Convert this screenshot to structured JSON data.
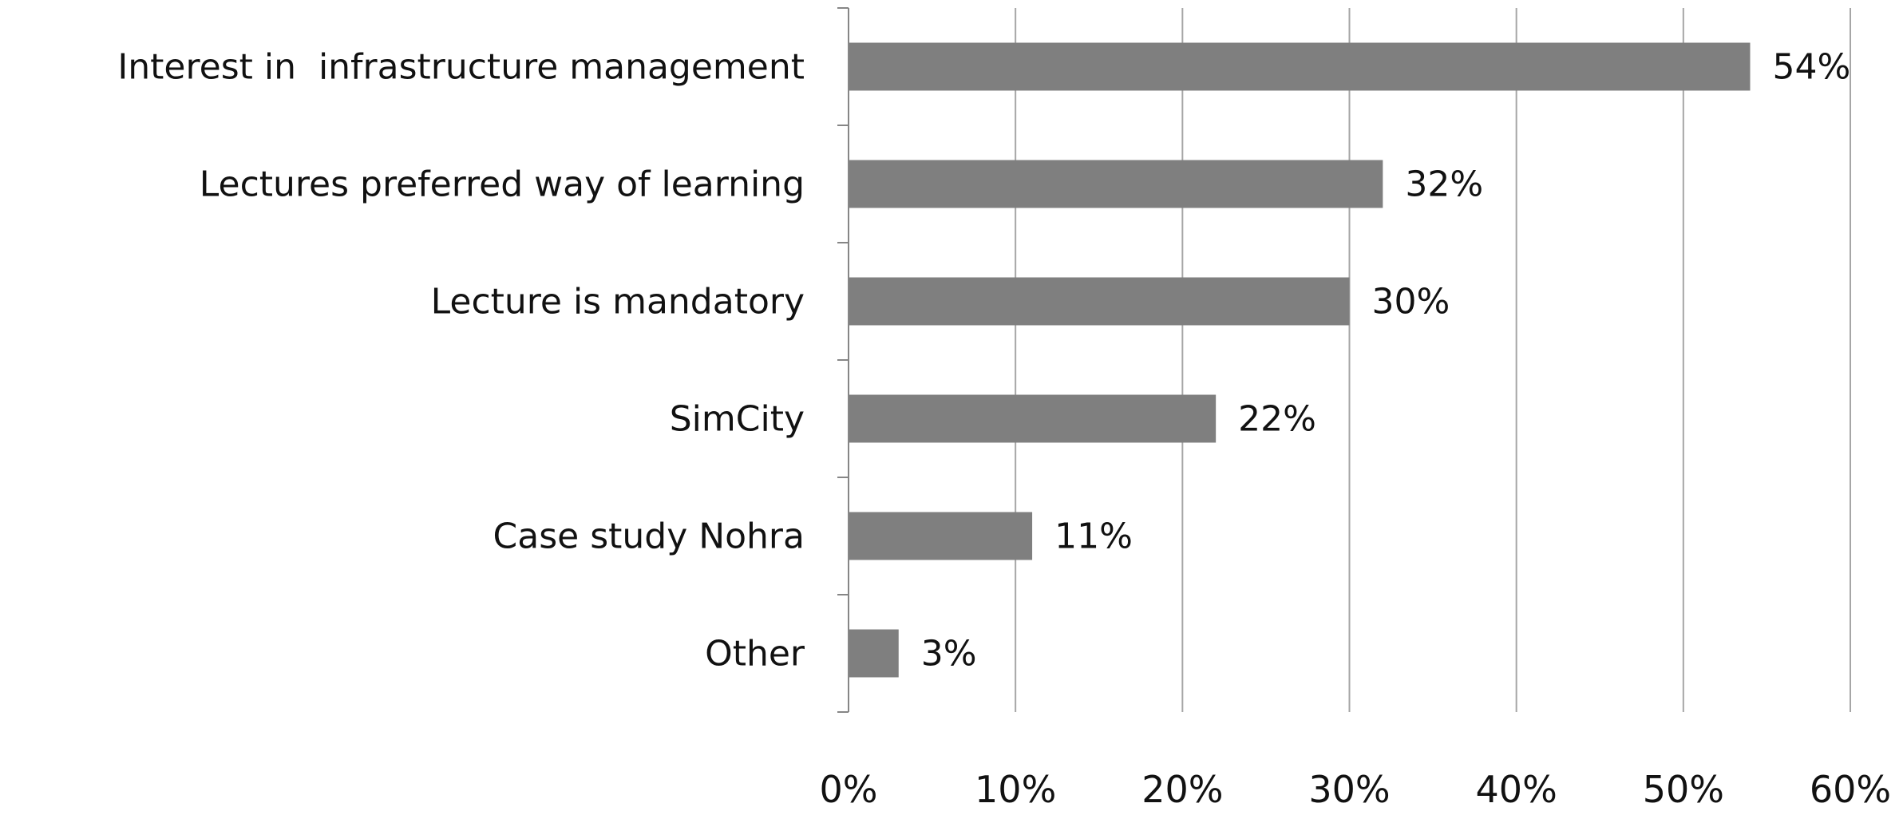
{
  "chart_data": {
    "type": "bar",
    "orientation": "horizontal",
    "categories": [
      "Interest in  infrastructure management",
      "Lectures preferred way of learning",
      "Lecture is mandatory",
      "SimCity",
      "Case study Nohra",
      "Other"
    ],
    "values": [
      54,
      32,
      30,
      22,
      11,
      3
    ],
    "data_labels": [
      "54%",
      "32%",
      "30%",
      "22%",
      "11%",
      "3%"
    ],
    "x_ticks": [
      "0%",
      "10%",
      "20%",
      "30%",
      "40%",
      "50%",
      "60%"
    ],
    "xlim": [
      0,
      60
    ],
    "grid": "vertical",
    "legend": "none",
    "bar_color": "#7f7f7f",
    "grid_color": "#a6a6a6",
    "axis_color": "#868686"
  }
}
